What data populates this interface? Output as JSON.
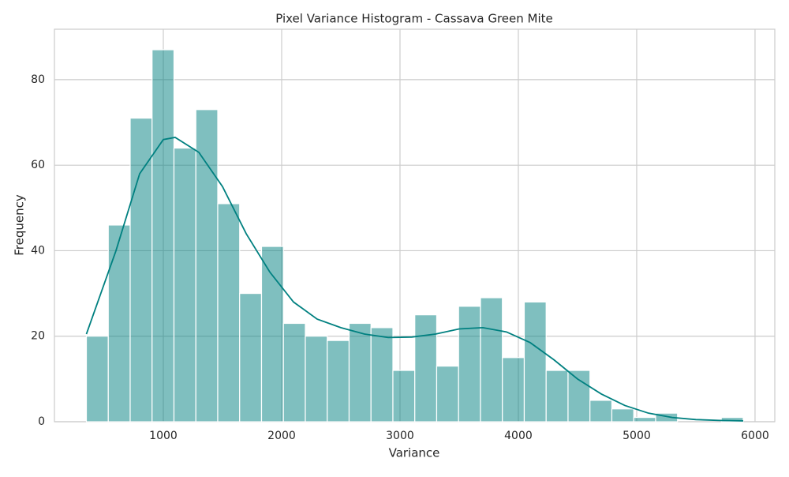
{
  "chart_data": {
    "type": "histogram",
    "title": "Pixel Variance Histogram - Cassava Green Mite",
    "x_label": "Variance",
    "y_label": "Frequency",
    "bins": [
      350,
      535,
      720,
      905,
      1090,
      1275,
      1460,
      1645,
      1830,
      2015,
      2200,
      2385,
      2570,
      2755,
      2940,
      3125,
      3310,
      3495,
      3680,
      3865,
      4050,
      4235,
      4420,
      4605,
      4790,
      4975,
      5160,
      5345,
      5530,
      5715,
      5900
    ],
    "values": [
      20,
      46,
      71,
      87,
      64,
      73,
      51,
      30,
      41,
      23,
      20,
      19,
      23,
      22,
      12,
      25,
      13,
      27,
      29,
      15,
      28,
      12,
      12,
      5,
      3,
      1,
      2,
      0,
      0,
      1
    ],
    "color": "#008080",
    "kde": {
      "x": [
        350,
        600,
        800,
        1000,
        1100,
        1300,
        1500,
        1700,
        1900,
        2100,
        2300,
        2500,
        2700,
        2900,
        3100,
        3300,
        3500,
        3700,
        3900,
        4100,
        4300,
        4500,
        4700,
        4900,
        5100,
        5300,
        5500,
        5700,
        5900
      ],
      "values": [
        20.5,
        40,
        58,
        66,
        66.5,
        63,
        55,
        44,
        35,
        28,
        24,
        22,
        20.5,
        19.7,
        19.8,
        20.5,
        21.7,
        22,
        21,
        18.5,
        14.5,
        10,
        6.5,
        3.8,
        2,
        1,
        0.5,
        0.3,
        0.2
      ]
    },
    "xlim": [
      80,
      6167
    ],
    "ylim": [
      0,
      91.8
    ],
    "xticks": [
      1000,
      2000,
      3000,
      4000,
      5000,
      6000
    ],
    "yticks": [
      0,
      20,
      40,
      60,
      80
    ],
    "grid": true
  }
}
